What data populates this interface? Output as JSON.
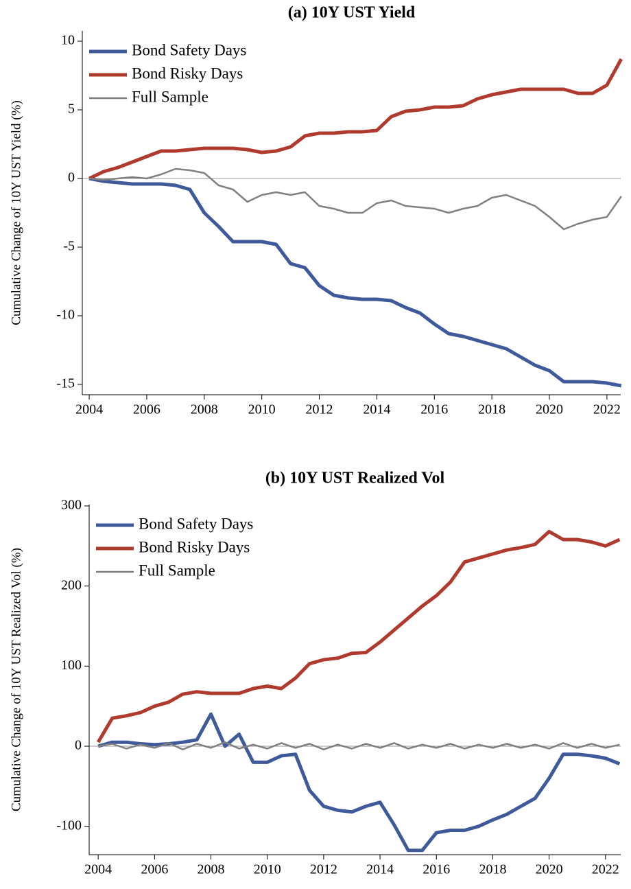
{
  "chart_data": [
    {
      "type": "line",
      "title": "(a) 10Y UST Yield",
      "y_label": "Cumulative Change of 10Y UST Yield (%)",
      "x": [
        2004,
        2004.5,
        2005,
        2005.5,
        2006,
        2006.5,
        2007,
        2007.5,
        2008,
        2008.5,
        2009,
        2009.5,
        2010,
        2010.5,
        2011,
        2011.5,
        2012,
        2012.5,
        2013,
        2013.5,
        2014,
        2014.5,
        2015,
        2015.5,
        2016,
        2016.5,
        2017,
        2017.5,
        2018,
        2018.5,
        2019,
        2019.5,
        2020,
        2020.5,
        2021,
        2021.5,
        2022,
        2022.5
      ],
      "series": [
        {
          "name": "Bond Safety Days",
          "color": "#3f5a9a",
          "values": [
            0,
            -0.2,
            -0.3,
            -0.4,
            -0.4,
            -0.4,
            -0.5,
            -0.8,
            -2.5,
            -3.5,
            -4.6,
            -4.6,
            -4.6,
            -4.8,
            -6.2,
            -6.5,
            -7.8,
            -8.5,
            -8.7,
            -8.8,
            -8.8,
            -8.9,
            -9.4,
            -9.8,
            -10.6,
            -11.3,
            -11.5,
            -11.8,
            -12.1,
            -12.4,
            -13.0,
            -13.6,
            -14.0,
            -14.8,
            -14.8,
            -14.8,
            -14.9,
            -15.1
          ]
        },
        {
          "name": "Bond Risky Days",
          "color": "#b03a2e",
          "values": [
            0,
            0.5,
            0.8,
            1.2,
            1.6,
            2.0,
            2.0,
            2.1,
            2.2,
            2.2,
            2.2,
            2.1,
            1.9,
            2.0,
            2.3,
            3.1,
            3.3,
            3.3,
            3.4,
            3.4,
            3.5,
            4.5,
            4.9,
            5.0,
            5.2,
            5.2,
            5.3,
            5.8,
            6.1,
            6.3,
            6.5,
            6.5,
            6.5,
            6.5,
            6.2,
            6.2,
            6.8,
            8.7
          ]
        },
        {
          "name": "Full Sample",
          "color": "#808080",
          "values": [
            0,
            -0.1,
            0,
            0.1,
            0,
            0.3,
            0.7,
            0.6,
            0.4,
            -0.5,
            -0.8,
            -1.7,
            -1.2,
            -1.0,
            -1.2,
            -1.0,
            -2.0,
            -2.2,
            -2.5,
            -2.5,
            -1.8,
            -1.6,
            -2.0,
            -2.1,
            -2.2,
            -2.5,
            -2.2,
            -2.0,
            -1.4,
            -1.2,
            -1.6,
            -2.0,
            -2.8,
            -3.7,
            -3.3,
            -3.0,
            -2.8,
            -1.3
          ]
        }
      ],
      "xlim": [
        2003.76,
        2022.48
      ],
      "xticks": [
        2004,
        2006,
        2008,
        2010,
        2012,
        2014,
        2016,
        2018,
        2020,
        2022
      ],
      "ylim": [
        -15.75,
        10.75
      ],
      "yticks": [
        10,
        5,
        0,
        -5,
        -10,
        -15
      ],
      "hline": 0,
      "legend": "upper left"
    },
    {
      "type": "line",
      "title": "(b) 10Y UST Realized Vol",
      "y_label": "Cumulative Change of 10Y UST Realized Vol (%)",
      "x": [
        2004,
        2004.5,
        2005,
        2005.5,
        2006,
        2006.5,
        2007,
        2007.5,
        2008,
        2008.5,
        2009,
        2009.5,
        2010,
        2010.5,
        2011,
        2011.5,
        2012,
        2012.5,
        2013,
        2013.5,
        2014,
        2014.5,
        2015,
        2015.5,
        2016,
        2016.5,
        2017,
        2017.5,
        2018,
        2018.5,
        2019,
        2019.5,
        2020,
        2020.5,
        2021,
        2021.5,
        2022,
        2022.5
      ],
      "series": [
        {
          "name": "Bond Safety Days",
          "color": "#3f5a9a",
          "values": [
            0,
            5,
            5,
            3,
            2,
            3,
            5,
            8,
            40,
            0,
            15,
            -20,
            -20,
            -12,
            -10,
            -55,
            -75,
            -80,
            -82,
            -75,
            -70,
            -98,
            -130,
            -130,
            -108,
            -105,
            -105,
            -100,
            -92,
            -85,
            -75,
            -65,
            -40,
            -10,
            -10,
            -12,
            -15,
            -22
          ]
        },
        {
          "name": "Bond Risky Days",
          "color": "#b03a2e",
          "values": [
            5,
            35,
            38,
            42,
            50,
            55,
            65,
            68,
            66,
            66,
            66,
            72,
            75,
            72,
            85,
            103,
            108,
            110,
            116,
            117,
            130,
            145,
            160,
            175,
            188,
            205,
            230,
            235,
            240,
            245,
            248,
            252,
            268,
            258,
            258,
            255,
            250,
            258
          ]
        },
        {
          "name": "Full Sample",
          "color": "#808080",
          "values": [
            0,
            3,
            -3,
            2,
            -2,
            4,
            -4,
            3,
            -2,
            5,
            -3,
            2,
            -3,
            4,
            -2,
            3,
            -4,
            2,
            -3,
            3,
            -2,
            4,
            -3,
            2,
            -2,
            3,
            -3,
            2,
            -2,
            3,
            -2,
            2,
            -3,
            4,
            -2,
            3,
            -2,
            2
          ]
        }
      ],
      "xlim": [
        2003.68,
        2022.54
      ],
      "xticks": [
        2004,
        2006,
        2008,
        2010,
        2012,
        2014,
        2016,
        2018,
        2020,
        2022
      ],
      "ylim": [
        -135.4,
        301.7
      ],
      "yticks": [
        300,
        200,
        100,
        0,
        -100
      ],
      "hline": 0,
      "legend": "upper left"
    }
  ]
}
